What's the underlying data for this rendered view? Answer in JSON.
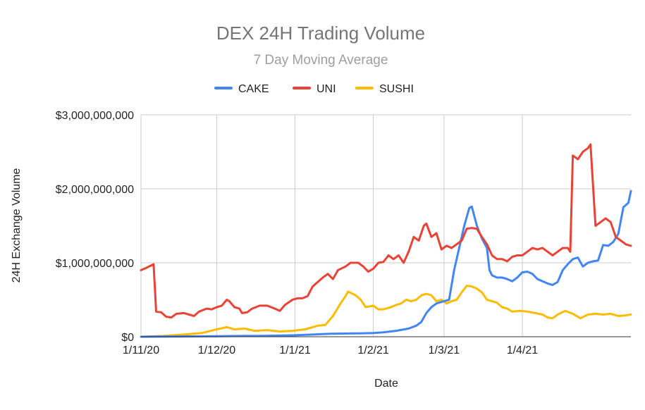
{
  "chart_data": {
    "type": "line",
    "title": "DEX 24H Trading Volume",
    "subtitle": "7 Day Moving Average",
    "xlabel": "Date",
    "ylabel": "24H Exchange Volume",
    "x_ticks": [
      "1/11/20",
      "1/12/20",
      "1/1/21",
      "1/2/21",
      "1/3/21",
      "1/4/21"
    ],
    "y_ticks": [
      "$0",
      "$1,000,000,000",
      "$2,000,000,000",
      "$3,000,000,000"
    ],
    "ylim": [
      0,
      3000000000
    ],
    "grid": true,
    "legend_position": "top",
    "series": [
      {
        "name": "CAKE",
        "color": "#4285f4",
        "points": [
          [
            "2020-11-01",
            0
          ],
          [
            "2020-11-10",
            2000000
          ],
          [
            "2020-11-20",
            5000000
          ],
          [
            "2020-12-01",
            8000000
          ],
          [
            "2020-12-10",
            10000000
          ],
          [
            "2020-12-20",
            12000000
          ],
          [
            "2021-01-01",
            20000000
          ],
          [
            "2021-01-08",
            30000000
          ],
          [
            "2021-01-15",
            40000000
          ],
          [
            "2021-01-25",
            45000000
          ],
          [
            "2021-02-01",
            50000000
          ],
          [
            "2021-02-05",
            60000000
          ],
          [
            "2021-02-10",
            80000000
          ],
          [
            "2021-02-15",
            110000000
          ],
          [
            "2021-02-18",
            150000000
          ],
          [
            "2021-02-20",
            200000000
          ],
          [
            "2021-02-22",
            320000000
          ],
          [
            "2021-02-24",
            400000000
          ],
          [
            "2021-02-26",
            450000000
          ],
          [
            "2021-03-01",
            480000000
          ],
          [
            "2021-03-03",
            500000000
          ],
          [
            "2021-03-05",
            900000000
          ],
          [
            "2021-03-07",
            1200000000
          ],
          [
            "2021-03-09",
            1500000000
          ],
          [
            "2021-03-11",
            1740000000
          ],
          [
            "2021-03-12",
            1760000000
          ],
          [
            "2021-03-14",
            1500000000
          ],
          [
            "2021-03-16",
            1330000000
          ],
          [
            "2021-03-18",
            1200000000
          ],
          [
            "2021-03-19",
            900000000
          ],
          [
            "2021-03-20",
            830000000
          ],
          [
            "2021-03-22",
            800000000
          ],
          [
            "2021-03-24",
            800000000
          ],
          [
            "2021-03-26",
            780000000
          ],
          [
            "2021-03-28",
            750000000
          ],
          [
            "2021-03-30",
            800000000
          ],
          [
            "2021-04-01",
            870000000
          ],
          [
            "2021-04-03",
            880000000
          ],
          [
            "2021-04-05",
            850000000
          ],
          [
            "2021-04-07",
            780000000
          ],
          [
            "2021-04-09",
            750000000
          ],
          [
            "2021-04-11",
            720000000
          ],
          [
            "2021-04-13",
            700000000
          ],
          [
            "2021-04-15",
            740000000
          ],
          [
            "2021-04-17",
            900000000
          ],
          [
            "2021-04-19",
            980000000
          ],
          [
            "2021-04-21",
            1050000000
          ],
          [
            "2021-04-23",
            1070000000
          ],
          [
            "2021-04-25",
            950000000
          ],
          [
            "2021-04-27",
            1000000000
          ],
          [
            "2021-04-29",
            1020000000
          ],
          [
            "2021-05-01",
            1030000000
          ],
          [
            "2021-05-03",
            1240000000
          ],
          [
            "2021-05-05",
            1230000000
          ],
          [
            "2021-05-07",
            1280000000
          ],
          [
            "2021-05-09",
            1390000000
          ],
          [
            "2021-05-11",
            1750000000
          ],
          [
            "2021-05-13",
            1810000000
          ],
          [
            "2021-05-14",
            1970000000
          ]
        ]
      },
      {
        "name": "UNI",
        "color": "#ea4335",
        "points": [
          [
            "2020-11-01",
            900000000
          ],
          [
            "2020-11-03",
            930000000
          ],
          [
            "2020-11-06",
            980000000
          ],
          [
            "2020-11-07",
            340000000
          ],
          [
            "2020-11-09",
            330000000
          ],
          [
            "2020-11-11",
            270000000
          ],
          [
            "2020-11-13",
            260000000
          ],
          [
            "2020-11-15",
            310000000
          ],
          [
            "2020-11-18",
            320000000
          ],
          [
            "2020-11-20",
            300000000
          ],
          [
            "2020-11-22",
            280000000
          ],
          [
            "2020-11-24",
            340000000
          ],
          [
            "2020-11-27",
            380000000
          ],
          [
            "2020-11-29",
            370000000
          ],
          [
            "2020-12-01",
            400000000
          ],
          [
            "2020-12-03",
            420000000
          ],
          [
            "2020-12-05",
            500000000
          ],
          [
            "2020-12-06",
            480000000
          ],
          [
            "2020-12-08",
            400000000
          ],
          [
            "2020-12-10",
            380000000
          ],
          [
            "2020-12-11",
            320000000
          ],
          [
            "2020-12-13",
            330000000
          ],
          [
            "2020-12-15",
            380000000
          ],
          [
            "2020-12-18",
            420000000
          ],
          [
            "2020-12-21",
            420000000
          ],
          [
            "2020-12-24",
            380000000
          ],
          [
            "2020-12-26",
            350000000
          ],
          [
            "2020-12-28",
            430000000
          ],
          [
            "2020-12-31",
            500000000
          ],
          [
            "2021-01-02",
            520000000
          ],
          [
            "2021-01-04",
            520000000
          ],
          [
            "2021-01-06",
            550000000
          ],
          [
            "2021-01-08",
            680000000
          ],
          [
            "2021-01-12",
            800000000
          ],
          [
            "2021-01-14",
            850000000
          ],
          [
            "2021-01-16",
            780000000
          ],
          [
            "2021-01-18",
            900000000
          ],
          [
            "2021-01-21",
            950000000
          ],
          [
            "2021-01-23",
            1000000000
          ],
          [
            "2021-01-26",
            1000000000
          ],
          [
            "2021-01-28",
            950000000
          ],
          [
            "2021-01-30",
            880000000
          ],
          [
            "2021-02-01",
            920000000
          ],
          [
            "2021-02-03",
            1000000000
          ],
          [
            "2021-02-05",
            1010000000
          ],
          [
            "2021-02-07",
            1100000000
          ],
          [
            "2021-02-09",
            1050000000
          ],
          [
            "2021-02-11",
            1100000000
          ],
          [
            "2021-02-13",
            1000000000
          ],
          [
            "2021-02-15",
            1150000000
          ],
          [
            "2021-02-17",
            1350000000
          ],
          [
            "2021-02-19",
            1300000000
          ],
          [
            "2021-02-21",
            1500000000
          ],
          [
            "2021-02-22",
            1530000000
          ],
          [
            "2021-02-24",
            1350000000
          ],
          [
            "2021-02-26",
            1400000000
          ],
          [
            "2021-02-28",
            1180000000
          ],
          [
            "2021-03-02",
            1230000000
          ],
          [
            "2021-03-04",
            1200000000
          ],
          [
            "2021-03-06",
            1250000000
          ],
          [
            "2021-03-08",
            1300000000
          ],
          [
            "2021-03-10",
            1460000000
          ],
          [
            "2021-03-12",
            1470000000
          ],
          [
            "2021-03-14",
            1460000000
          ],
          [
            "2021-03-16",
            1350000000
          ],
          [
            "2021-03-18",
            1250000000
          ],
          [
            "2021-03-20",
            1100000000
          ],
          [
            "2021-03-22",
            1050000000
          ],
          [
            "2021-03-24",
            1050000000
          ],
          [
            "2021-03-26",
            1020000000
          ],
          [
            "2021-03-28",
            1080000000
          ],
          [
            "2021-03-30",
            1100000000
          ],
          [
            "2021-04-01",
            1100000000
          ],
          [
            "2021-04-03",
            1150000000
          ],
          [
            "2021-04-05",
            1200000000
          ],
          [
            "2021-04-07",
            1180000000
          ],
          [
            "2021-04-09",
            1200000000
          ],
          [
            "2021-04-11",
            1150000000
          ],
          [
            "2021-04-13",
            1100000000
          ],
          [
            "2021-04-15",
            1150000000
          ],
          [
            "2021-04-17",
            1200000000
          ],
          [
            "2021-04-19",
            1200000000
          ],
          [
            "2021-04-20",
            1150000000
          ],
          [
            "2021-04-21",
            2450000000
          ],
          [
            "2021-04-23",
            2400000000
          ],
          [
            "2021-04-25",
            2500000000
          ],
          [
            "2021-04-27",
            2550000000
          ],
          [
            "2021-04-28",
            2600000000
          ],
          [
            "2021-04-30",
            1500000000
          ],
          [
            "2021-05-02",
            1550000000
          ],
          [
            "2021-05-04",
            1600000000
          ],
          [
            "2021-05-06",
            1550000000
          ],
          [
            "2021-05-08",
            1350000000
          ],
          [
            "2021-05-10",
            1300000000
          ],
          [
            "2021-05-12",
            1250000000
          ],
          [
            "2021-05-14",
            1230000000
          ]
        ]
      },
      {
        "name": "SUSHI",
        "color": "#fbbc04",
        "points": [
          [
            "2020-11-01",
            0
          ],
          [
            "2020-11-10",
            10000000
          ],
          [
            "2020-11-18",
            30000000
          ],
          [
            "2020-11-25",
            50000000
          ],
          [
            "2020-12-01",
            100000000
          ],
          [
            "2020-12-05",
            130000000
          ],
          [
            "2020-12-08",
            100000000
          ],
          [
            "2020-12-12",
            110000000
          ],
          [
            "2020-12-16",
            80000000
          ],
          [
            "2020-12-21",
            90000000
          ],
          [
            "2020-12-26",
            70000000
          ],
          [
            "2020-12-31",
            80000000
          ],
          [
            "2021-01-05",
            100000000
          ],
          [
            "2021-01-10",
            150000000
          ],
          [
            "2021-01-13",
            160000000
          ],
          [
            "2021-01-16",
            280000000
          ],
          [
            "2021-01-19",
            450000000
          ],
          [
            "2021-01-21",
            550000000
          ],
          [
            "2021-01-22",
            610000000
          ],
          [
            "2021-01-25",
            560000000
          ],
          [
            "2021-01-27",
            500000000
          ],
          [
            "2021-01-29",
            400000000
          ],
          [
            "2021-02-01",
            420000000
          ],
          [
            "2021-02-03",
            370000000
          ],
          [
            "2021-02-05",
            370000000
          ],
          [
            "2021-02-08",
            400000000
          ],
          [
            "2021-02-10",
            430000000
          ],
          [
            "2021-02-12",
            450000000
          ],
          [
            "2021-02-14",
            500000000
          ],
          [
            "2021-02-16",
            480000000
          ],
          [
            "2021-02-18",
            500000000
          ],
          [
            "2021-02-20",
            560000000
          ],
          [
            "2021-02-22",
            580000000
          ],
          [
            "2021-02-24",
            560000000
          ],
          [
            "2021-02-26",
            480000000
          ],
          [
            "2021-02-28",
            500000000
          ],
          [
            "2021-03-02",
            450000000
          ],
          [
            "2021-03-04",
            480000000
          ],
          [
            "2021-03-06",
            500000000
          ],
          [
            "2021-03-08",
            600000000
          ],
          [
            "2021-03-10",
            690000000
          ],
          [
            "2021-03-12",
            680000000
          ],
          [
            "2021-03-14",
            650000000
          ],
          [
            "2021-03-16",
            600000000
          ],
          [
            "2021-03-18",
            500000000
          ],
          [
            "2021-03-20",
            480000000
          ],
          [
            "2021-03-22",
            460000000
          ],
          [
            "2021-03-24",
            400000000
          ],
          [
            "2021-03-26",
            380000000
          ],
          [
            "2021-03-28",
            340000000
          ],
          [
            "2021-03-31",
            350000000
          ],
          [
            "2021-04-03",
            340000000
          ],
          [
            "2021-04-06",
            320000000
          ],
          [
            "2021-04-09",
            300000000
          ],
          [
            "2021-04-11",
            260000000
          ],
          [
            "2021-04-13",
            250000000
          ],
          [
            "2021-04-15",
            300000000
          ],
          [
            "2021-04-18",
            350000000
          ],
          [
            "2021-04-21",
            310000000
          ],
          [
            "2021-04-24",
            250000000
          ],
          [
            "2021-04-27",
            300000000
          ],
          [
            "2021-04-30",
            310000000
          ],
          [
            "2021-05-03",
            300000000
          ],
          [
            "2021-05-06",
            310000000
          ],
          [
            "2021-05-09",
            280000000
          ],
          [
            "2021-05-12",
            290000000
          ],
          [
            "2021-05-14",
            300000000
          ]
        ]
      }
    ]
  }
}
